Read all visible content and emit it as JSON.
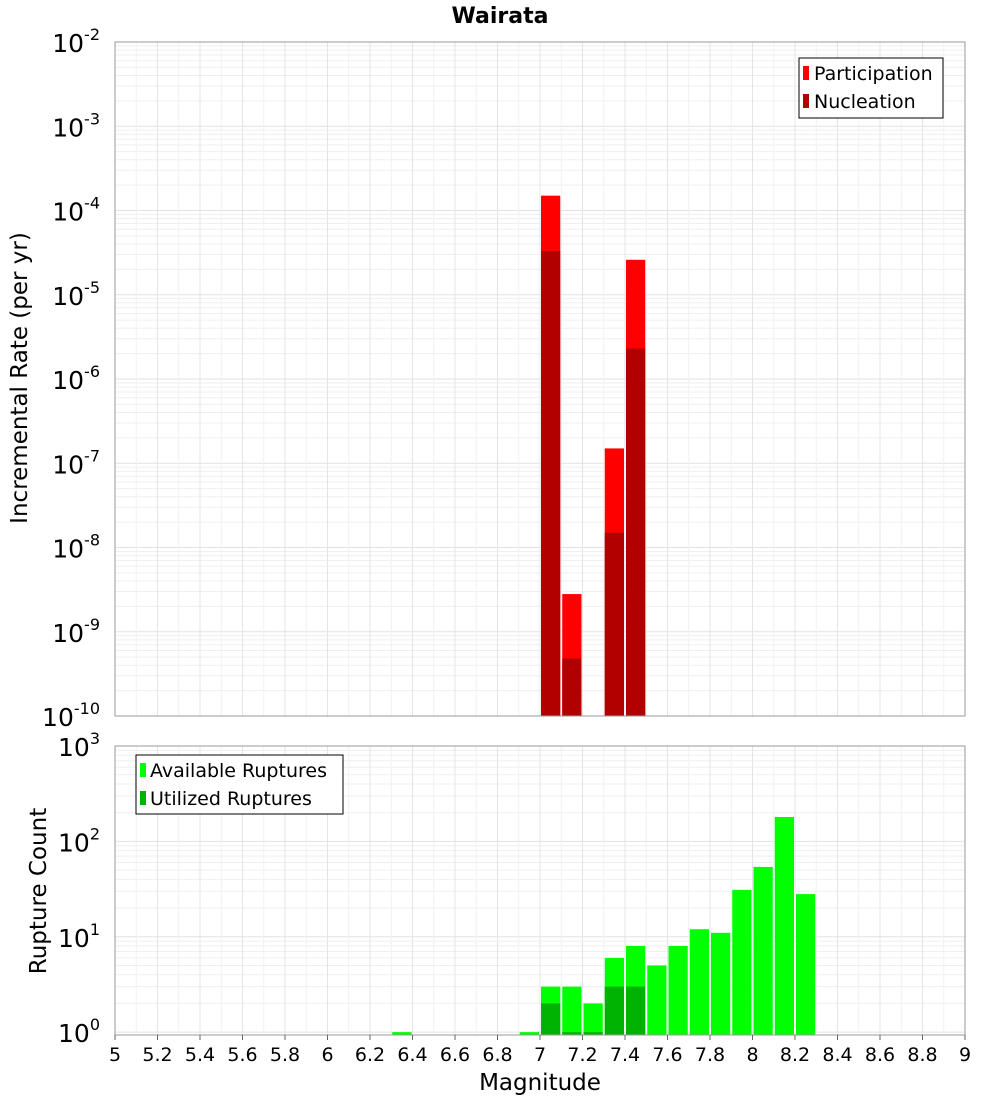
{
  "chart_data": [
    {
      "type": "bar",
      "title": "Wairata",
      "xlabel": "",
      "ylabel": "Incremental Rate (per yr)",
      "yscale": "log",
      "ylim_exp": [
        -10,
        -2
      ],
      "xlim": [
        5,
        9
      ],
      "grid": true,
      "legend_position": "top-right",
      "bin_width": 0.1,
      "series": [
        {
          "name": "Participation",
          "color": "#ff0000",
          "x": [
            7.05,
            7.15,
            7.35,
            7.45
          ],
          "values": [
            0.00015,
            2.8e-09,
            1.5e-07,
            2.6e-05
          ]
        },
        {
          "name": "Nucleation",
          "color": "#b20000",
          "x": [
            7.05,
            7.15,
            7.35,
            7.45
          ],
          "values": [
            3.3e-05,
            4.8e-10,
            1.5e-08,
            2.3e-06
          ]
        }
      ]
    },
    {
      "type": "bar",
      "title": "",
      "xlabel": "Magnitude",
      "ylabel": "Rupture Count",
      "yscale": "log",
      "ylim_exp": [
        -0.03,
        3
      ],
      "xlim": [
        5,
        9
      ],
      "grid": true,
      "legend_position": "top-left",
      "bin_width": 0.1,
      "x_ticks": [
        "5",
        "5.2",
        "5.4",
        "5.6",
        "5.8",
        "6",
        "6.2",
        "6.4",
        "6.6",
        "6.8",
        "7",
        "7.2",
        "7.4",
        "7.6",
        "7.8",
        "8",
        "8.2",
        "8.4",
        "8.6",
        "8.8",
        "9"
      ],
      "series": [
        {
          "name": "Available Ruptures",
          "color": "#00ff00",
          "x": [
            6.35,
            6.95,
            7.05,
            7.15,
            7.25,
            7.35,
            7.45,
            7.55,
            7.65,
            7.75,
            7.85,
            7.95,
            8.05,
            8.15,
            8.25
          ],
          "values": [
            1,
            1,
            3,
            3,
            2,
            6,
            8,
            5,
            8,
            12,
            11,
            31,
            54,
            180,
            28
          ]
        },
        {
          "name": "Utilized Ruptures",
          "color": "#00b200",
          "x": [
            7.05,
            7.15,
            7.25,
            7.35,
            7.45
          ],
          "values": [
            2,
            1,
            1,
            3,
            3
          ]
        }
      ]
    }
  ]
}
